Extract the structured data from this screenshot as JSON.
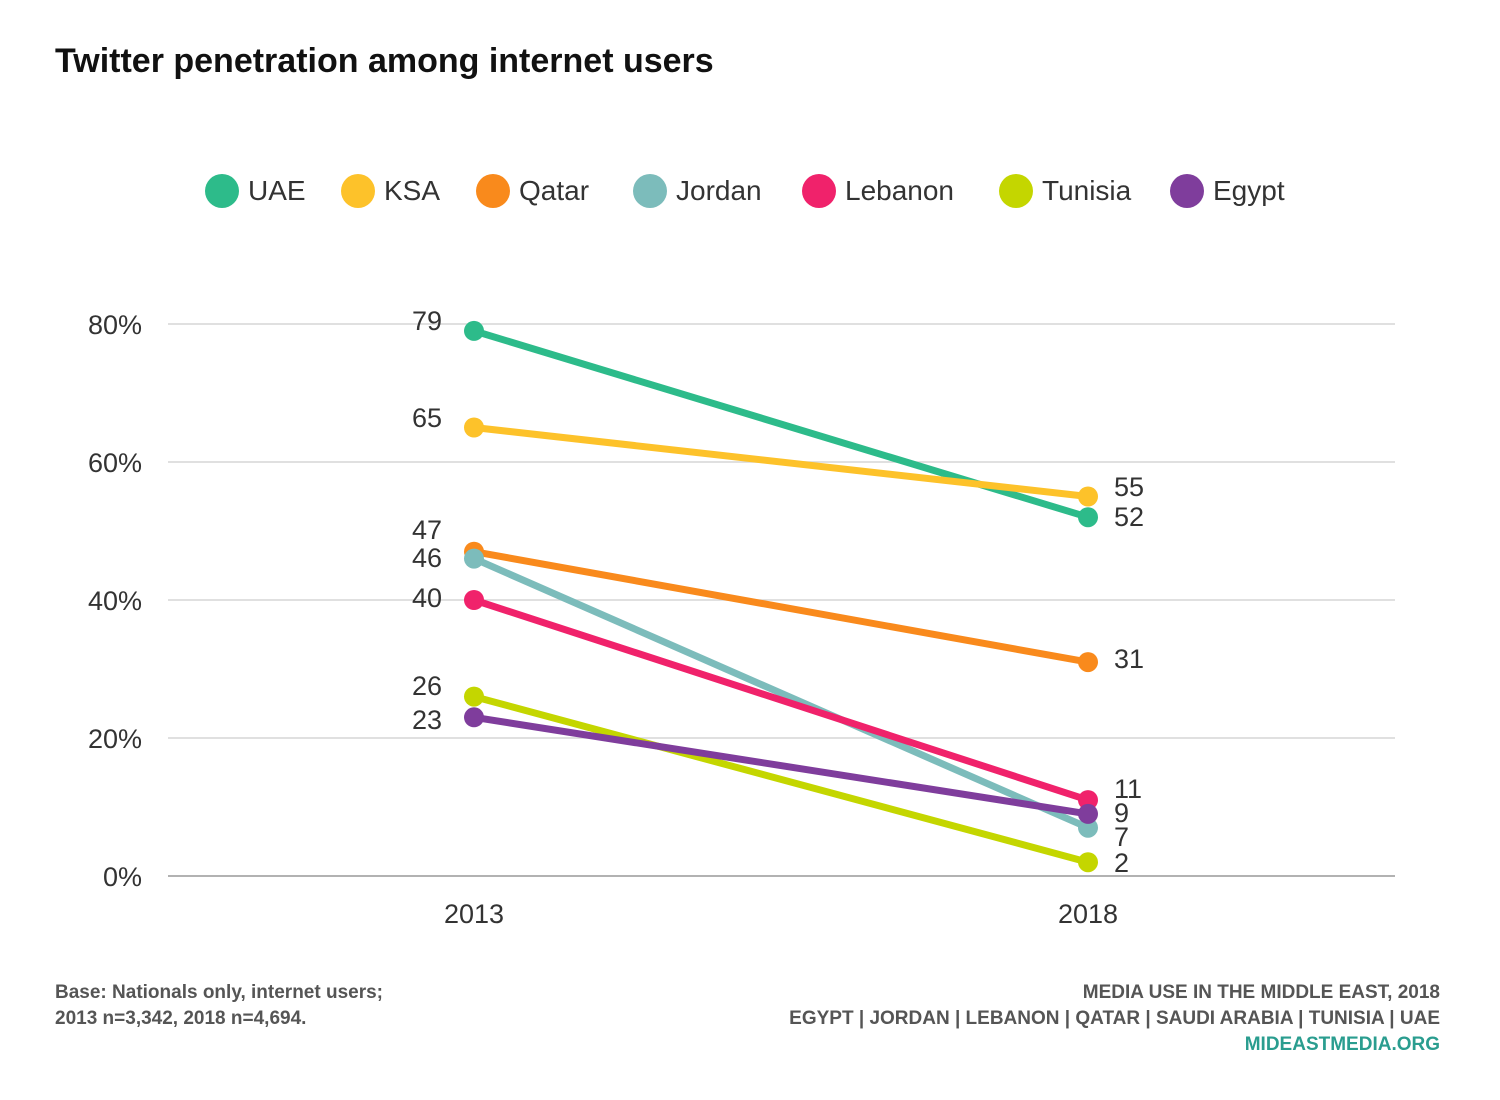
{
  "title": "Twitter penetration among internet users",
  "footer": {
    "base_line1": "Base: Nationals only, internet users;",
    "base_line2": "2013 n=3,342, 2018 n=4,694.",
    "source_line1": "MEDIA USE IN THE MIDDLE EAST, 2018",
    "source_line2": "EGYPT | JORDAN | LEBANON | QATAR | SAUDI ARABIA | TUNISIA | UAE",
    "source_line3": "MIDEASTMEDIA.ORG"
  },
  "chart_data": {
    "type": "line",
    "title": "Twitter penetration among internet users",
    "x": [
      "2013",
      "2018"
    ],
    "ylim": [
      0,
      80
    ],
    "yticks": [
      "0%",
      "20%",
      "40%",
      "60%",
      "80%"
    ],
    "grid": true,
    "legend_position": "top",
    "series": [
      {
        "name": "UAE",
        "color": "#2dbb8a",
        "values": [
          79,
          52
        ]
      },
      {
        "name": "KSA",
        "color": "#fdc22a",
        "values": [
          65,
          55
        ]
      },
      {
        "name": "Qatar",
        "color": "#f98a1c",
        "values": [
          47,
          31
        ]
      },
      {
        "name": "Jordan",
        "color": "#7cbcbb",
        "values": [
          46,
          7
        ]
      },
      {
        "name": "Lebanon",
        "color": "#f0226b",
        "values": [
          40,
          11
        ]
      },
      {
        "name": "Tunisia",
        "color": "#c4d600",
        "values": [
          26,
          2
        ]
      },
      {
        "name": "Egypt",
        "color": "#7f3d9c",
        "values": [
          23,
          9
        ]
      }
    ],
    "data_labels": {
      "2013": [
        "79",
        "65",
        "47",
        "46",
        "40",
        "26",
        "23"
      ],
      "2018": [
        "52",
        "55",
        "31",
        "7",
        "11",
        "2",
        "9"
      ]
    }
  }
}
